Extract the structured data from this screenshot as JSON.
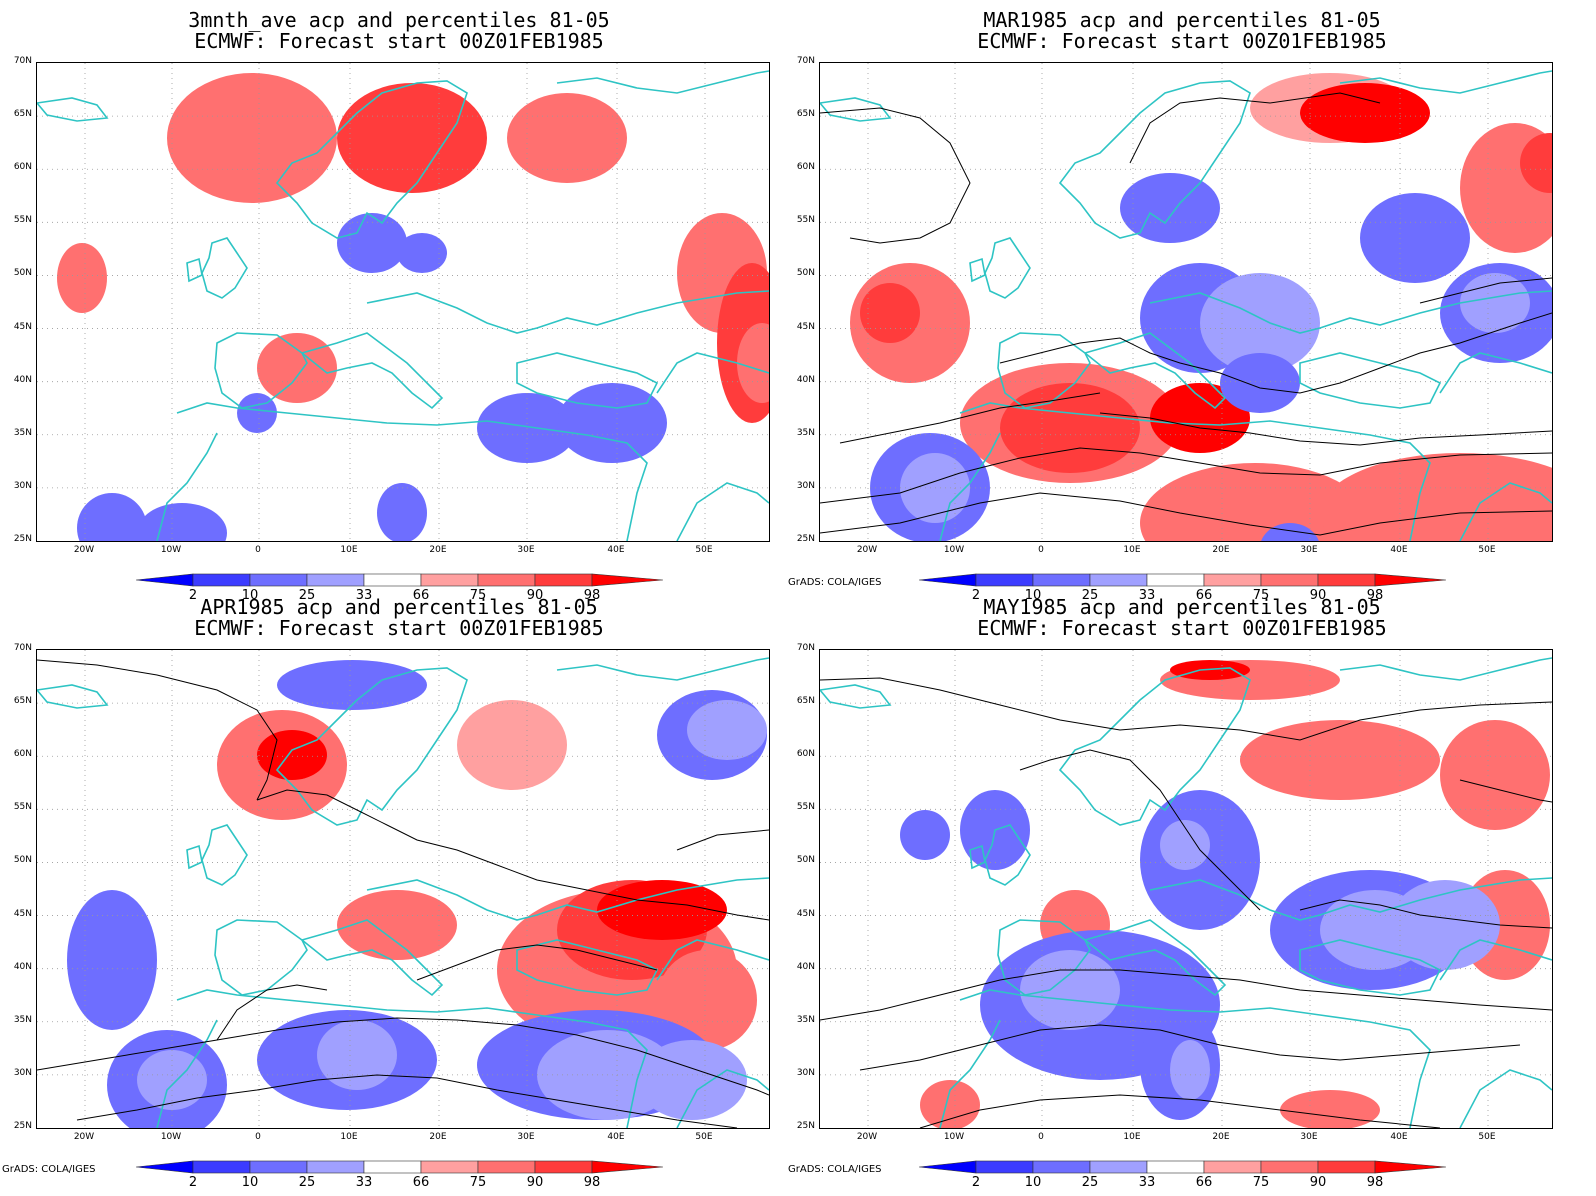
{
  "panels": [
    {
      "id": "p1",
      "title_line1": "3mnth_ave acp and percentiles 81-05",
      "title_line2": "ECMWF: Forecast start 00Z01FEB1985",
      "credit": ""
    },
    {
      "id": "p2",
      "title_line1": "MAR1985 acp and percentiles 81-05",
      "title_line2": "ECMWF: Forecast start 00Z01FEB1985",
      "credit": "GrADS: COLA/IGES"
    },
    {
      "id": "p3",
      "title_line1": "APR1985 acp and percentiles 81-05",
      "title_line2": "ECMWF: Forecast start 00Z01FEB1985",
      "credit": "GrADS: COLA/IGES"
    },
    {
      "id": "p4",
      "title_line1": "MAY1985 acp and percentiles 81-05",
      "title_line2": "ECMWF: Forecast start 00Z01FEB1985",
      "credit": "GrADS: COLA/IGES"
    }
  ],
  "lat_labels": [
    "70N",
    "65N",
    "60N",
    "55N",
    "50N",
    "45N",
    "40N",
    "35N",
    "30N",
    "25N"
  ],
  "lon_labels": [
    "20W",
    "10W",
    "0",
    "10E",
    "20E",
    "30E",
    "40E",
    "50E"
  ],
  "colorbar": {
    "ticks": [
      "2",
      "10",
      "25",
      "33",
      "66",
      "75",
      "90",
      "98"
    ],
    "colors": [
      "#0000ff",
      "#3c3cff",
      "#6e6eff",
      "#a0a0ff",
      "#ffffff",
      "#ffa0a0",
      "#ff7070",
      "#ff3c3c",
      "#ff0000"
    ]
  },
  "colors": {
    "coastline": "#2ec4c4",
    "contour": "#000000",
    "grid": "#999999"
  }
}
